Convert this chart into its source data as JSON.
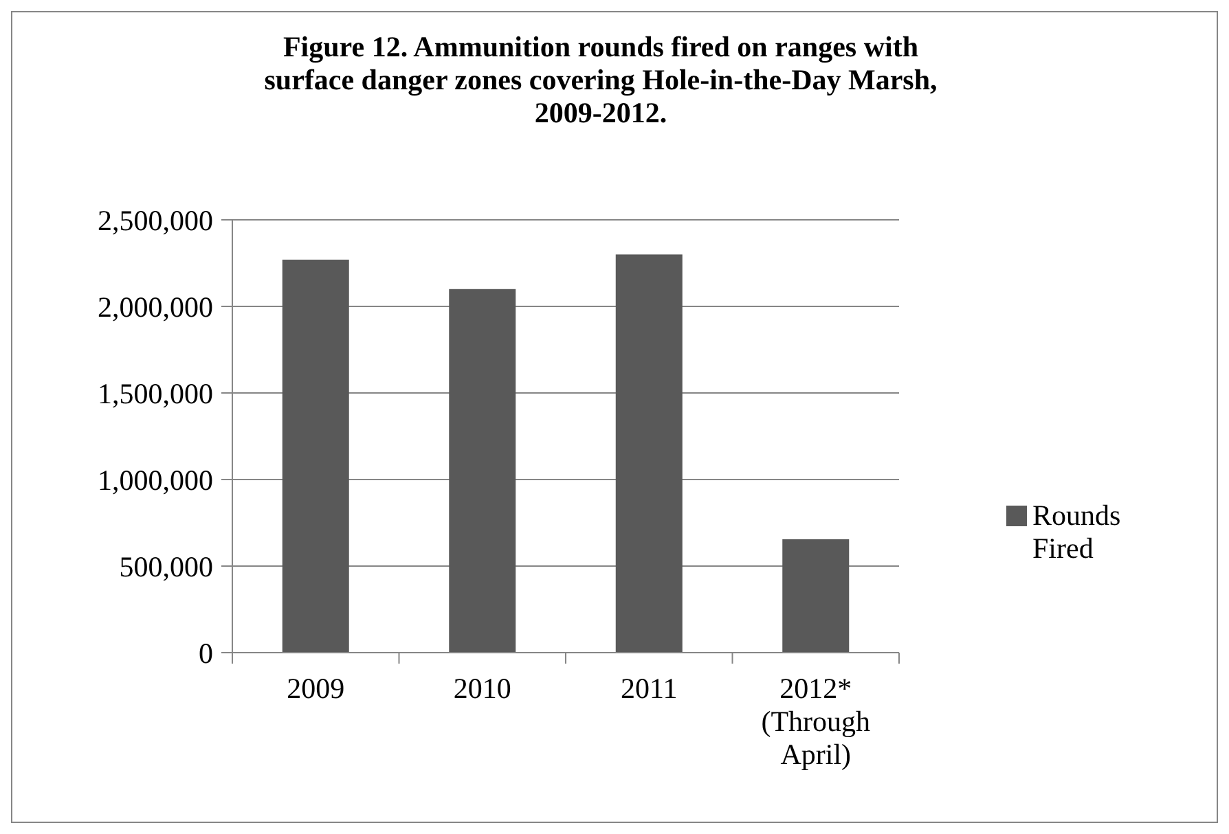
{
  "chart_data": {
    "type": "bar",
    "title": "Figure 12.  Ammunition rounds fired on ranges with surface danger zones covering Hole-in-the-Day Marsh, 2009-2012.",
    "categories": [
      "2009",
      "2010",
      "2011",
      "2012* (Through April)"
    ],
    "series": [
      {
        "name": "Rounds Fired",
        "color": "#595959",
        "values": [
          2270000,
          2100000,
          2300000,
          655000
        ]
      }
    ],
    "ylim": [
      0,
      2500000
    ],
    "yticks": [
      {
        "value": 0,
        "label": "0"
      },
      {
        "value": 500000,
        "label": "500,000"
      },
      {
        "value": 1000000,
        "label": "1,000,000"
      },
      {
        "value": 1500000,
        "label": "1,500,000"
      },
      {
        "value": 2000000,
        "label": "2,000,000"
      },
      {
        "value": 2500000,
        "label": "2,500,000"
      }
    ],
    "grid": "y",
    "legend": "right"
  }
}
